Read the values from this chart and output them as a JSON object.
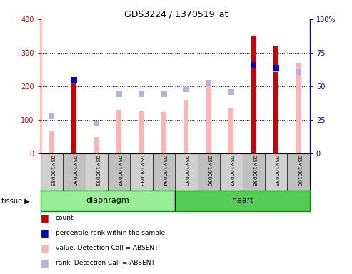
{
  "title": "GDS3224 / 1370519_at",
  "samples": [
    "GSM160089",
    "GSM160090",
    "GSM160091",
    "GSM160092",
    "GSM160093",
    "GSM160094",
    "GSM160095",
    "GSM160096",
    "GSM160097",
    "GSM160098",
    "GSM160099",
    "GSM160100"
  ],
  "tissue_groups": [
    {
      "label": "diaphragm",
      "indices": [
        0,
        5
      ]
    },
    {
      "label": "heart",
      "indices": [
        6,
        11
      ]
    }
  ],
  "count_values": [
    null,
    210,
    null,
    null,
    null,
    null,
    null,
    null,
    null,
    350,
    320,
    null
  ],
  "percentile_rank_values": [
    null,
    218,
    null,
    null,
    null,
    null,
    null,
    null,
    null,
    263,
    255,
    null
  ],
  "value_absent": [
    65,
    null,
    48,
    130,
    125,
    123,
    160,
    200,
    133,
    255,
    null,
    270
  ],
  "rank_absent": [
    110,
    null,
    90,
    177,
    177,
    177,
    192,
    210,
    183,
    null,
    250,
    243
  ],
  "left_ylim": [
    0,
    400
  ],
  "left_yticks": [
    0,
    100,
    200,
    300,
    400
  ],
  "left_yticklabels": [
    "0",
    "100",
    "200",
    "300",
    "400"
  ],
  "right_yticklabels": [
    "0",
    "25",
    "50",
    "75",
    "100%"
  ],
  "color_count": "#cc0000",
  "color_percentile": "#0000cc",
  "color_value_absent": "#ffb3b3",
  "color_rank_absent": "#b3b3dd",
  "bg_color": "#ffffff",
  "plot_bg": "#ffffff",
  "tick_area_bg": "#cccccc",
  "tissue_color1": "#99ee99",
  "tissue_color2": "#55cc55",
  "tissue_border": "#009900"
}
